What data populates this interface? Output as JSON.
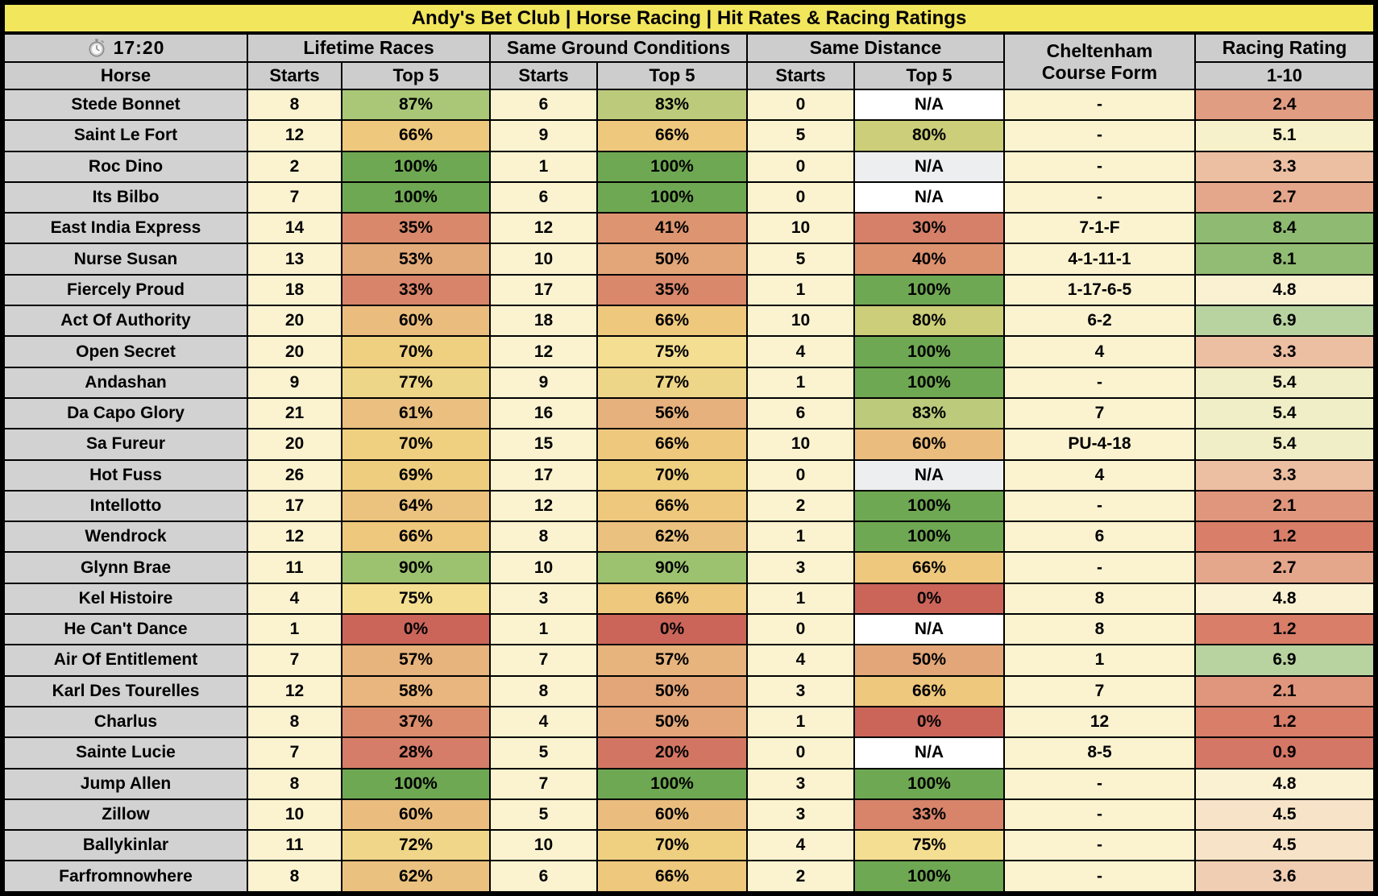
{
  "title": "Andy's Bet Club | Horse Racing | Hit Rates & Racing Ratings",
  "race_time": "17:20",
  "header": {
    "lifetime": "Lifetime Races",
    "ground": "Same Ground Conditions",
    "distance": "Same Distance",
    "course_form_line1": "Cheltenham",
    "course_form_line2": "Course Form",
    "racing_rating": "Racing Rating",
    "horse": "Horse",
    "starts": "Starts",
    "top5": "Top 5",
    "rating_scale": "1-10"
  },
  "colors": {
    "title_bg": "#F2E65C",
    "header_bg": "#CDCDCD",
    "name_bg": "#D2D2D2",
    "starts_bg": "#FBF3D0",
    "form_bg": "#FBF3D0",
    "na_default": "#FFFFFF",
    "na_muted": "#EDEEF0",
    "na_muted_rows": [
      "Roc Dino",
      "Hot Fuss"
    ],
    "pct": {
      "0%": "#CB655A",
      "20%": "#D27663",
      "28%": "#D57D68",
      "30%": "#D68069",
      "33%": "#D8846A",
      "35%": "#D9886B",
      "37%": "#DA8C6C",
      "40%": "#DC916F",
      "41%": "#DD9470",
      "50%": "#E2A679",
      "53%": "#E3AA7A",
      "56%": "#E6B17D",
      "57%": "#E7B47D",
      "58%": "#E8B67E",
      "60%": "#EABD7F",
      "61%": "#EABF80",
      "62%": "#EAC17F",
      "64%": "#EBC37E",
      "66%": "#EEC87D",
      "69%": "#EECD7F",
      "70%": "#EFCF80",
      "72%": "#F0D689",
      "75%": "#F4DE91",
      "77%": "#EDD687",
      "80%": "#CCCE79",
      "83%": "#BCCB7B",
      "87%": "#A9C777",
      "90%": "#9CC26F",
      "100%": "#6FA853"
    },
    "rating": {
      "0.9": "#D57766",
      "1.2": "#D87E69",
      "2.1": "#E0967D",
      "2.4": "#E19D82",
      "2.7": "#E5A78C",
      "3.3": "#ECBEA2",
      "3.6": "#F0CEB3",
      "4.5": "#F7E4C8",
      "4.8": "#FAF1D3",
      "5.1": "#F6F1CB",
      "5.4": "#F0EEC7",
      "6.9": "#B9D3A0",
      "8.1": "#92BB74",
      "8.4": "#8FBA72"
    }
  },
  "chart_data": {
    "type": "table",
    "title": "Andy's Bet Club | Horse Racing | Hit Rates & Racing Ratings",
    "race_time": "17:20",
    "column_groups": [
      "Lifetime Races",
      "Same Ground Conditions",
      "Same Distance",
      "Cheltenham Course Form",
      "Racing Rating 1-10"
    ],
    "columns": [
      "Horse",
      "Lifetime Starts",
      "Lifetime Top 5",
      "Same Ground Starts",
      "Same Ground Top 5",
      "Same Distance Starts",
      "Same Distance Top 5",
      "Cheltenham Course Form",
      "Racing Rating 1-10"
    ],
    "rows": [
      {
        "horse": "Stede Bonnet",
        "lifetime_starts": "8",
        "lifetime_top5": "87%",
        "ground_starts": "6",
        "ground_top5": "83%",
        "distance_starts": "0",
        "distance_top5": "N/A",
        "course_form": "-",
        "rating": "2.4"
      },
      {
        "horse": "Saint Le Fort",
        "lifetime_starts": "12",
        "lifetime_top5": "66%",
        "ground_starts": "9",
        "ground_top5": "66%",
        "distance_starts": "5",
        "distance_top5": "80%",
        "course_form": "-",
        "rating": "5.1"
      },
      {
        "horse": "Roc Dino",
        "lifetime_starts": "2",
        "lifetime_top5": "100%",
        "ground_starts": "1",
        "ground_top5": "100%",
        "distance_starts": "0",
        "distance_top5": "N/A",
        "course_form": "-",
        "rating": "3.3"
      },
      {
        "horse": "Its Bilbo",
        "lifetime_starts": "7",
        "lifetime_top5": "100%",
        "ground_starts": "6",
        "ground_top5": "100%",
        "distance_starts": "0",
        "distance_top5": "N/A",
        "course_form": "-",
        "rating": "2.7"
      },
      {
        "horse": "East India Express",
        "lifetime_starts": "14",
        "lifetime_top5": "35%",
        "ground_starts": "12",
        "ground_top5": "41%",
        "distance_starts": "10",
        "distance_top5": "30%",
        "course_form": "7-1-F",
        "rating": "8.4"
      },
      {
        "horse": "Nurse Susan",
        "lifetime_starts": "13",
        "lifetime_top5": "53%",
        "ground_starts": "10",
        "ground_top5": "50%",
        "distance_starts": "5",
        "distance_top5": "40%",
        "course_form": "4-1-11-1",
        "rating": "8.1"
      },
      {
        "horse": "Fiercely Proud",
        "lifetime_starts": "18",
        "lifetime_top5": "33%",
        "ground_starts": "17",
        "ground_top5": "35%",
        "distance_starts": "1",
        "distance_top5": "100%",
        "course_form": "1-17-6-5",
        "rating": "4.8"
      },
      {
        "horse": "Act Of Authority",
        "lifetime_starts": "20",
        "lifetime_top5": "60%",
        "ground_starts": "18",
        "ground_top5": "66%",
        "distance_starts": "10",
        "distance_top5": "80%",
        "course_form": "6-2",
        "rating": "6.9"
      },
      {
        "horse": "Open Secret",
        "lifetime_starts": "20",
        "lifetime_top5": "70%",
        "ground_starts": "12",
        "ground_top5": "75%",
        "distance_starts": "4",
        "distance_top5": "100%",
        "course_form": "4",
        "rating": "3.3"
      },
      {
        "horse": "Andashan",
        "lifetime_starts": "9",
        "lifetime_top5": "77%",
        "ground_starts": "9",
        "ground_top5": "77%",
        "distance_starts": "1",
        "distance_top5": "100%",
        "course_form": "-",
        "rating": "5.4"
      },
      {
        "horse": "Da Capo Glory",
        "lifetime_starts": "21",
        "lifetime_top5": "61%",
        "ground_starts": "16",
        "ground_top5": "56%",
        "distance_starts": "6",
        "distance_top5": "83%",
        "course_form": "7",
        "rating": "5.4"
      },
      {
        "horse": "Sa Fureur",
        "lifetime_starts": "20",
        "lifetime_top5": "70%",
        "ground_starts": "15",
        "ground_top5": "66%",
        "distance_starts": "10",
        "distance_top5": "60%",
        "course_form": "PU-4-18",
        "rating": "5.4"
      },
      {
        "horse": "Hot Fuss",
        "lifetime_starts": "26",
        "lifetime_top5": "69%",
        "ground_starts": "17",
        "ground_top5": "70%",
        "distance_starts": "0",
        "distance_top5": "N/A",
        "course_form": "4",
        "rating": "3.3"
      },
      {
        "horse": "Intellotto",
        "lifetime_starts": "17",
        "lifetime_top5": "64%",
        "ground_starts": "12",
        "ground_top5": "66%",
        "distance_starts": "2",
        "distance_top5": "100%",
        "course_form": "-",
        "rating": "2.1"
      },
      {
        "horse": "Wendrock",
        "lifetime_starts": "12",
        "lifetime_top5": "66%",
        "ground_starts": "8",
        "ground_top5": "62%",
        "distance_starts": "1",
        "distance_top5": "100%",
        "course_form": "6",
        "rating": "1.2"
      },
      {
        "horse": "Glynn Brae",
        "lifetime_starts": "11",
        "lifetime_top5": "90%",
        "ground_starts": "10",
        "ground_top5": "90%",
        "distance_starts": "3",
        "distance_top5": "66%",
        "course_form": "-",
        "rating": "2.7"
      },
      {
        "horse": "Kel Histoire",
        "lifetime_starts": "4",
        "lifetime_top5": "75%",
        "ground_starts": "3",
        "ground_top5": "66%",
        "distance_starts": "1",
        "distance_top5": "0%",
        "course_form": "8",
        "rating": "4.8"
      },
      {
        "horse": "He Can't Dance",
        "lifetime_starts": "1",
        "lifetime_top5": "0%",
        "ground_starts": "1",
        "ground_top5": "0%",
        "distance_starts": "0",
        "distance_top5": "N/A",
        "course_form": "8",
        "rating": "1.2"
      },
      {
        "horse": "Air Of Entitlement",
        "lifetime_starts": "7",
        "lifetime_top5": "57%",
        "ground_starts": "7",
        "ground_top5": "57%",
        "distance_starts": "4",
        "distance_top5": "50%",
        "course_form": "1",
        "rating": "6.9"
      },
      {
        "horse": "Karl Des Tourelles",
        "lifetime_starts": "12",
        "lifetime_top5": "58%",
        "ground_starts": "8",
        "ground_top5": "50%",
        "distance_starts": "3",
        "distance_top5": "66%",
        "course_form": "7",
        "rating": "2.1"
      },
      {
        "horse": "Charlus",
        "lifetime_starts": "8",
        "lifetime_top5": "37%",
        "ground_starts": "4",
        "ground_top5": "50%",
        "distance_starts": "1",
        "distance_top5": "0%",
        "course_form": "12",
        "rating": "1.2"
      },
      {
        "horse": "Sainte Lucie",
        "lifetime_starts": "7",
        "lifetime_top5": "28%",
        "ground_starts": "5",
        "ground_top5": "20%",
        "distance_starts": "0",
        "distance_top5": "N/A",
        "course_form": "8-5",
        "rating": "0.9"
      },
      {
        "horse": "Jump Allen",
        "lifetime_starts": "8",
        "lifetime_top5": "100%",
        "ground_starts": "7",
        "ground_top5": "100%",
        "distance_starts": "3",
        "distance_top5": "100%",
        "course_form": "-",
        "rating": "4.8"
      },
      {
        "horse": "Zillow",
        "lifetime_starts": "10",
        "lifetime_top5": "60%",
        "ground_starts": "5",
        "ground_top5": "60%",
        "distance_starts": "3",
        "distance_top5": "33%",
        "course_form": "-",
        "rating": "4.5"
      },
      {
        "horse": "Ballykinlar",
        "lifetime_starts": "11",
        "lifetime_top5": "72%",
        "ground_starts": "10",
        "ground_top5": "70%",
        "distance_starts": "4",
        "distance_top5": "75%",
        "course_form": "-",
        "rating": "4.5"
      },
      {
        "horse": "Farfromnowhere",
        "lifetime_starts": "8",
        "lifetime_top5": "62%",
        "ground_starts": "6",
        "ground_top5": "66%",
        "distance_starts": "2",
        "distance_top5": "100%",
        "course_form": "-",
        "rating": "3.6"
      }
    ]
  }
}
